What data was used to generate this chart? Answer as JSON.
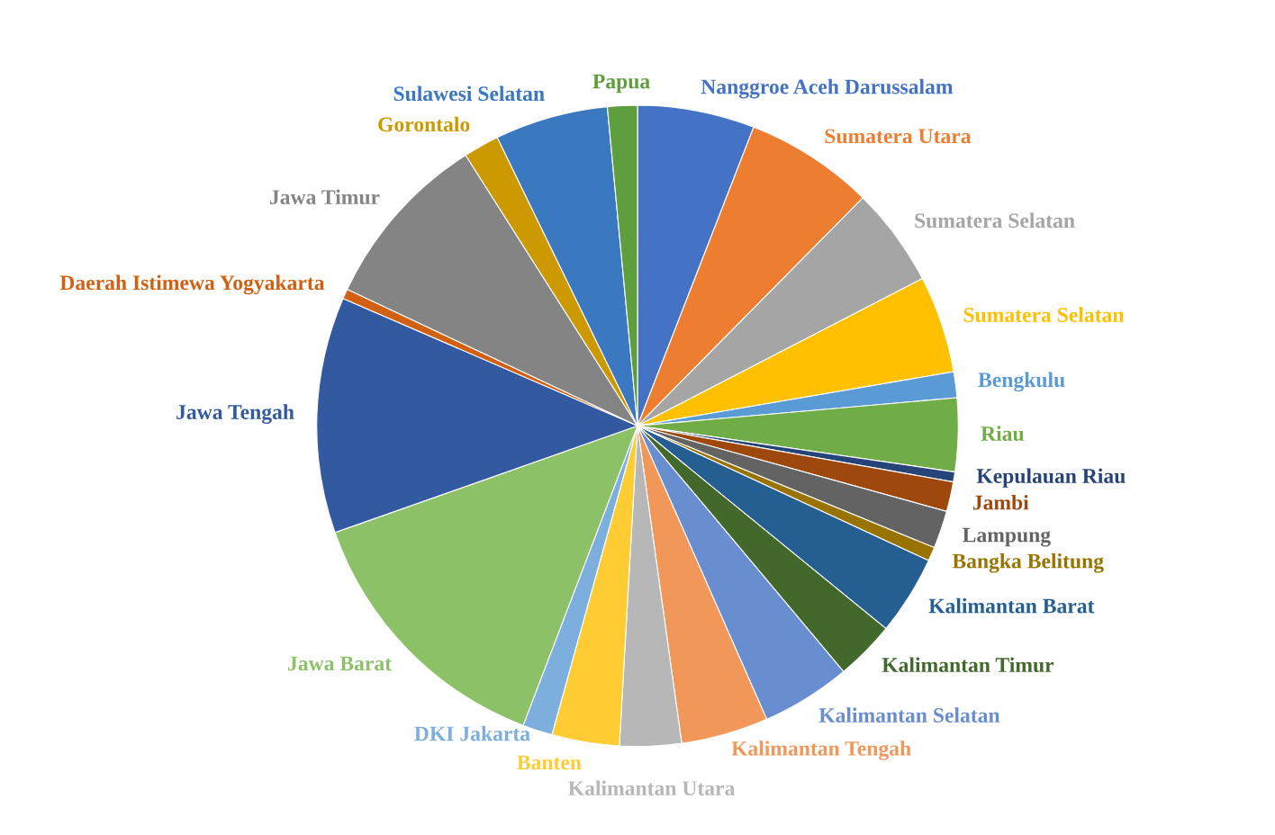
{
  "chart_data": {
    "type": "pie",
    "categories": [
      "Nanggroe Aceh Darussalam",
      "Sumatera Utara",
      "Sumatera Selatan",
      "Sumatera Selatan",
      "Bengkulu",
      "Riau",
      "Kepulauan Riau",
      "Jambi",
      "Lampung",
      "Bangka Belitung",
      "Kalimantan Barat",
      "Kalimantan Timur",
      "Kalimantan Selatan",
      "Kalimantan Tengah",
      "Kalimantan Utara",
      "Banten",
      "DKI Jakarta",
      "Jawa Barat",
      "Jawa Tengah",
      "Daerah Istimewa Yogyakarta",
      "Jawa Timur",
      "Gorontalo",
      "Sulawesi Selatan",
      "Papua"
    ],
    "values": [
      5.9,
      6.5,
      5.0,
      4.9,
      1.3,
      3.7,
      0.5,
      1.5,
      1.9,
      0.7,
      4.0,
      3.0,
      4.5,
      4.4,
      3.1,
      3.4,
      1.5,
      13.8,
      11.9,
      0.5,
      9.0,
      1.8,
      5.7,
      1.5
    ],
    "colors": [
      "#4472c4",
      "#ed7d31",
      "#a5a5a5",
      "#ffc000",
      "#5b9bd5",
      "#70ad47",
      "#264478",
      "#9e480e",
      "#636363",
      "#997300",
      "#255e91",
      "#43682b",
      "#698ed0",
      "#f1975a",
      "#b7b7b7",
      "#ffcd33",
      "#7cafdd",
      "#8cc168",
      "#335aa1",
      "#d26012",
      "#848484",
      "#cc9a00",
      "#3a78c0",
      "#5f9e3d"
    ],
    "legend": false
  }
}
